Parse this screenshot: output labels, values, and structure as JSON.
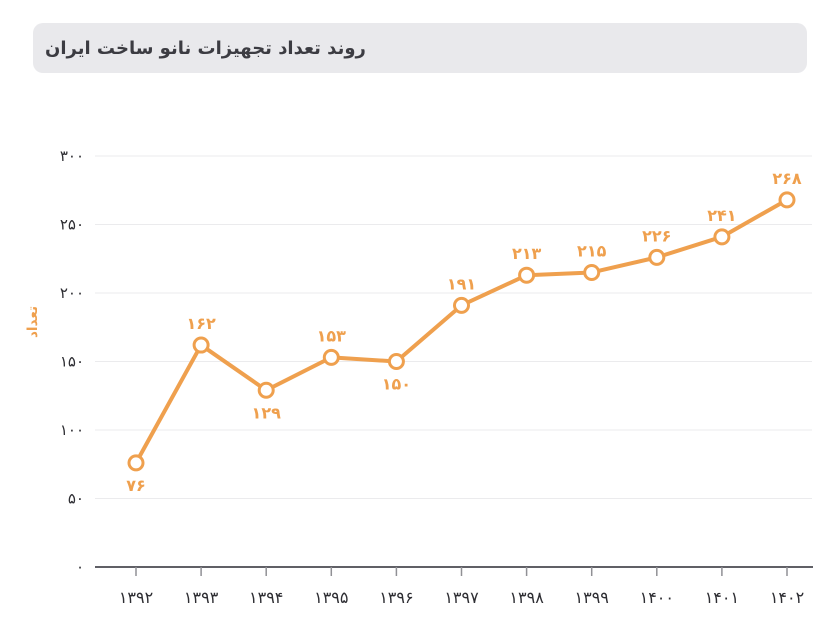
{
  "header": {
    "title": "روند تعداد تجهیزات نانو ساخت ایران"
  },
  "colors": {
    "accent_orange": "#EFA04E",
    "banner_bg": "#E9E9EC",
    "title_text": "#3C3C42",
    "axis_text": "#2E2E33",
    "grid_line": "#EBEBED",
    "axis_line": "#4A4A50",
    "tick_mark": "#909095",
    "marker_fill": "#FFFFFF"
  },
  "chart_data": {
    "type": "line",
    "title": "روند تعداد تجهیزات نانو ساخت ایران",
    "ylabel": "تعداد",
    "xlabel": "",
    "categories": [
      "1392",
      "1393",
      "1394",
      "1395",
      "1396",
      "1397",
      "1398",
      "1399",
      "1400",
      "1401",
      "1402"
    ],
    "categories_fa": [
      "۱۳۹۲",
      "۱۳۹۳",
      "۱۳۹۴",
      "۱۳۹۵",
      "۱۳۹۶",
      "۱۳۹۷",
      "۱۳۹۸",
      "۱۳۹۹",
      "۱۴۰۰",
      "۱۴۰۱",
      "۱۴۰۲"
    ],
    "series": [
      {
        "name": "تعداد تجهیزات نانو ساخت ایران",
        "values": [
          76,
          162,
          129,
          153,
          150,
          191,
          213,
          215,
          226,
          241,
          268
        ],
        "value_labels_fa": [
          "۷۶",
          "۱۶۲",
          "۱۲۹",
          "۱۵۳",
          "۱۵۰",
          "۱۹۱",
          "۲۱۳",
          "۲۱۵",
          "۲۲۶",
          "۲۴۱",
          "۲۶۸"
        ],
        "label_position": [
          "below",
          "above",
          "below",
          "above",
          "below",
          "above",
          "above",
          "above",
          "above",
          "above",
          "above"
        ]
      }
    ],
    "y_ticks": [
      0,
      50,
      100,
      150,
      200,
      250,
      300
    ],
    "y_tick_labels_fa": [
      "۰",
      "۵۰",
      "۱۰۰",
      "۱۵۰",
      "۲۰۰",
      "۲۵۰",
      "۳۰۰"
    ],
    "ylim": [
      0,
      300
    ],
    "grid": "horizontal",
    "legend_position": "none",
    "line_color": "#EFA04E",
    "marker_style": "open-circle"
  }
}
